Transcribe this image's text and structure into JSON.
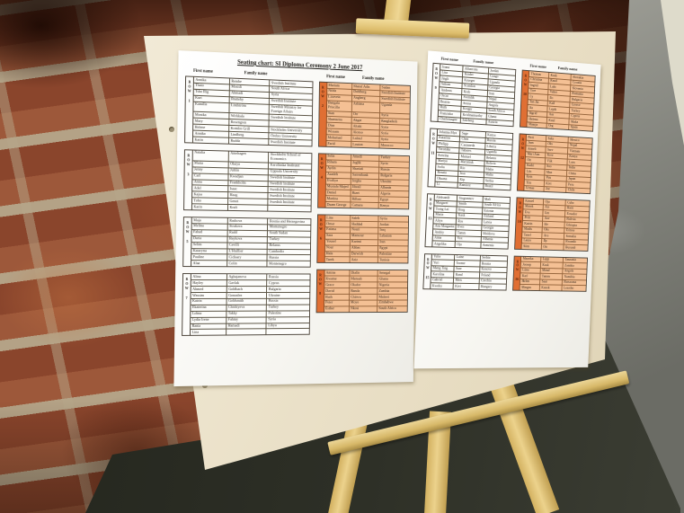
{
  "board": {
    "title": "Seating chart: SI Diploma Ceremony 2 June 2017",
    "column_headers": {
      "first": "First name",
      "family": "Family name"
    },
    "left_page": {
      "white_tables": [
        {
          "row": "1",
          "entries": [
            [
              "Annika",
              "Rembe",
              "Swedish Institute"
            ],
            [
              "Thato",
              "Mosidi",
              "South Africa"
            ],
            [
              "Tsho Rig",
              "Ahmadi",
              "Syria"
            ],
            [
              "Kurt",
              "Bratteby",
              "Swedish Institute"
            ],
            [
              "Kamilla",
              "Lindström",
              "Swedish Ministry for Foreign Affairs"
            ],
            [
              "Monika",
              "Wirkkala",
              "Swedish Institute"
            ],
            [
              "Mary",
              "Rosengren",
              ""
            ],
            [
              "Helene",
              "Komlos Grill",
              "Stockholm University"
            ],
            [
              "Annika",
              "Lindberg",
              "Örebro University"
            ],
            [
              "Karin",
              "Rudda",
              "Swedish Institute"
            ]
          ]
        },
        {
          "row": "3",
          "entries": [
            [
              "Natalia",
              "Amehagen",
              "Stockholm School of Economics"
            ],
            [
              "Maria",
              "Olaiya",
              "Karolinska Institutet"
            ],
            [
              "Jenny",
              "Juhlin",
              "Uppsala University"
            ],
            [
              "Carl",
              "Kwadjan",
              "Swedish Institute"
            ],
            [
              "Anna",
              "Frankholm",
              "Swedish Institute"
            ],
            [
              "Adel",
              "Isaac",
              "Swedish Institute"
            ],
            [
              "Kajsa",
              "Haag",
              "Swedish Institute"
            ],
            [
              "Tobo",
              "Genet",
              "Swedish Institute"
            ],
            [
              "Karin",
              "Kraft",
              ""
            ]
          ]
        },
        {
          "row": "5",
          "entries": [
            [
              "Maja",
              "Rashova",
              "Bosnia and Herzegovina"
            ],
            [
              "Melina",
              "Strakova",
              "Montenegro"
            ],
            [
              "Fahad",
              "Rudd",
              "South Sudan"
            ],
            [
              "Daria",
              "Baykova",
              "Turkey"
            ],
            [
              "Selim",
              "Cavilli",
              "Belarus"
            ],
            [
              "Kataryna",
              "L'Huillier",
              "Cambodia"
            ],
            [
              "Pauline",
              "Cidisary",
              "Russia"
            ],
            [
              "Alaa",
              "Colin",
              "Montenegro"
            ]
          ]
        },
        {
          "row": "7",
          "entries": [
            [
              "Alina",
              "Aghajanova",
              "Russia"
            ],
            [
              "Hayley",
              "Gavlak",
              "Cyprus"
            ],
            [
              "Ahmed",
              "Goldbach",
              "Bulgaria"
            ],
            [
              "Wassim",
              "Gonzalez",
              "Ukraine"
            ],
            [
              "Katrin",
              "Goldsmith",
              "Russia"
            ],
            [
              "Ekaterina",
              "Chishiyeva",
              "Turkey"
            ],
            [
              "Lobna",
              "Takky",
              "Palestine"
            ],
            [
              "Lydia Irene",
              "Fahmy",
              "Syria"
            ],
            [
              "Rania",
              "Hamadi",
              "Libya"
            ],
            [
              "Lina",
              "",
              ""
            ]
          ]
        }
      ],
      "orange_tables": [
        {
          "row": "2",
          "entries": [
            [
              "Mariam",
              "Sharaf Adis",
              "Sudan"
            ],
            [
              "Nilda",
              "Dahlberg",
              "Swedish Institute"
            ],
            [
              "Lizaveta",
              "Angberg",
              "Swedish Institute"
            ],
            [
              "Bangala Priscilla",
              "Ashima",
              "Uganda"
            ],
            [
              "Stan",
              "Orr",
              "Syria"
            ],
            [
              "Shamsena",
              "Akgar",
              "Bangladesh"
            ],
            [
              "Diaa",
              "Altaki",
              "Syria"
            ],
            [
              "Wissam",
              "Alonso",
              "Syria"
            ],
            [
              "Mohamad",
              "Lalouf",
              "Syria"
            ],
            [
              "Farid",
              "Louton",
              "Morocco"
            ]
          ]
        },
        {
          "row": "4",
          "entries": [
            [
              "Selin",
              "Amedi",
              "Turkey"
            ],
            [
              "Riham",
              "Joglik",
              "Syria"
            ],
            [
              "Aydin",
              "Shariati",
              "Russia"
            ],
            [
              "Azadeh",
              "Sarrenbank",
              "Bulgaria"
            ],
            [
              "Evaliya",
              "Jergha",
              "Ukraine"
            ],
            [
              "Mustafa Majed",
              "Jibrail",
              "Albania"
            ],
            [
              "Daniel",
              "Bizet",
              "Algeria"
            ],
            [
              "Martina",
              "Bilbao",
              "Egypt"
            ],
            [
              "Duam George",
              "Camara",
              "Kenya"
            ]
          ]
        },
        {
          "row": "6",
          "entries": [
            [
              "Lina",
              "Saleh",
              "Syria"
            ],
            [
              "Omar",
              "Haddad",
              "Jordan"
            ],
            [
              "Fatima",
              "Nouri",
              "Iraq"
            ],
            [
              "Sara",
              "Mansour",
              "Lebanon"
            ],
            [
              "Yousef",
              "Karimi",
              "Iran"
            ],
            [
              "Nour",
              "Abbas",
              "Egypt"
            ],
            [
              "Hala",
              "Darwish",
              "Palestine"
            ],
            [
              "Tarek",
              "Aziz",
              "Tunisia"
            ]
          ]
        },
        {
          "row": "8",
          "entries": [
            [
              "Amina",
              "Diallo",
              "Senegal"
            ],
            [
              "Kwame",
              "Mensah",
              "Ghana"
            ],
            [
              "Grace",
              "Okafor",
              "Nigeria"
            ],
            [
              "David",
              "Banda",
              "Zambia"
            ],
            [
              "Ruth",
              "Chirwa",
              "Malawi"
            ],
            [
              "Peter",
              "Moyo",
              "Zimbabwe"
            ],
            [
              "Esther",
              "Nkosi",
              "South Africa"
            ]
          ]
        }
      ]
    },
    "right_page": {
      "white_tables": [
        {
          "row": "9",
          "entries": [
            [
              "Joana",
              "Albarrons",
              "Jordan"
            ],
            [
              "Lisa",
              "Kinder",
              "Congo"
            ],
            [
              "Jingli",
              "Krueger",
              "Uganda"
            ],
            [
              "Sabran",
              "Scandon",
              "Georgia"
            ],
            [
              "Andreas",
              "Kreb",
              "Iran"
            ],
            [
              "Oscar",
              "Svemlik",
              "Nepal"
            ],
            [
              "Beatriz",
              "Sousa",
              "Angola"
            ],
            [
              "Ruth",
              "Kruger",
              "South Africa"
            ],
            [
              "Franziska",
              "Krishnamurthy",
              "Ghana"
            ],
            [
              "Charlemagne",
              "Salzberg",
              "Austria"
            ]
          ]
        },
        {
          "row": "11",
          "entries": [
            [
              "Johanna Mya",
              "Sage",
              "Kenya"
            ],
            [
              "Katarina",
              "Chen",
              "Russia"
            ],
            [
              "Philipp",
              "Castaneda",
              "Liberia"
            ],
            [
              "Veronika",
              "Tabares",
              "Uganda"
            ],
            [
              "Kristina",
              "Manuel",
              "Belarus"
            ],
            [
              "Mariya",
              "Maryniuk",
              "Bolivia"
            ],
            [
              "Sofia",
              "Rio",
              "Malta"
            ],
            [
              "Renata",
              "Issa",
              "Malta"
            ],
            [
              "Oksana",
              "Kip",
              "Serbia"
            ],
            [
              "Li",
              "Ramirez",
              "Brazil"
            ]
          ]
        },
        {
          "row": "13",
          "entries": [
            [
              "Aleksandr",
              "Stogiannov",
              "Mali"
            ],
            [
              "Margaret",
              "Smith",
              "South Africa"
            ],
            [
              "Tsang Lai",
              "Borg",
              "Estonia"
            ],
            [
              "Maria",
              "Kask",
              "Finland"
            ],
            [
              "Aliya",
              "Ros",
              "Latvia"
            ],
            [
              "Ana Margarita",
              "Ilves",
              "Georgia"
            ],
            [
              "Andriy",
              "Tamm",
              "Moldova"
            ],
            [
              "Anna",
              "Vox",
              "Albania"
            ],
            [
              "Angelika",
              "Oja",
              "Armenia"
            ]
          ]
        },
        {
          "row": "15",
          "entries": [
            [
              "Yulia",
              "Laine",
              "Serbia"
            ],
            [
              "Yuri",
              "Toome",
              "Bosnia"
            ],
            [
              "Meng Ting",
              "Saar",
              "Kosovo"
            ],
            [
              "Karolina",
              "Rand",
              "Poland"
            ],
            [
              "Gabriel",
              "Mets",
              "Czechia"
            ],
            [
              "Kweku",
              "Kivi",
              "Hungary"
            ]
          ]
        }
      ],
      "orange_tables": [
        {
          "row": "10",
          "entries": [
            [
              "Thomas",
              "Kask",
              "Slovakia"
            ],
            [
              "Christina",
              "Raud",
              "Croatia"
            ],
            [
              "Ingrid",
              "Laht",
              "Slovenia"
            ],
            [
              "Tore",
              "Vaher",
              "Romania"
            ],
            [
              "Ly",
              "Ilo",
              "Bulgaria"
            ],
            [
              "Tan Jin",
              "Kall",
              "Greece"
            ],
            [
              "Jia",
              "Lepik",
              "Turkey"
            ],
            [
              "Sigrid",
              "Aas",
              "Cyprus"
            ],
            [
              "Helena",
              "Kuul",
              "Malta"
            ],
            [
              "Maarja",
              "Org",
              "Spain"
            ]
          ]
        },
        {
          "row": "12",
          "entries": [
            [
              "Piret",
              "Saks",
              "Mexico"
            ],
            [
              "Jaan",
              "Oks",
              "Nepal"
            ],
            [
              "Anneli",
              "Sarv",
              "Vietnam"
            ],
            [
              "Mari Ann",
              "Kree",
              "Kenya"
            ],
            [
              "Ott",
              "Viik",
              "Laos"
            ],
            [
              "Kadri",
              "Soo",
              "India"
            ],
            [
              "Liis",
              "Maa",
              "China"
            ],
            [
              "Rein",
              "Puu",
              "Japan"
            ],
            [
              "Tiiu",
              "Kivi",
              "Peru"
            ],
            [
              "Urmas",
              "Joe",
              "Chile"
            ]
          ]
        },
        {
          "row": "14",
          "entries": [
            [
              "Kristel",
              "Oja",
              "Cuba"
            ],
            [
              "Marek",
              "Ats",
              "Haiti"
            ],
            [
              "Eva",
              "Unt",
              "Ecuador"
            ],
            [
              "Priit",
              "Aav",
              "Bolivia"
            ],
            [
              "Katrin",
              "Ide",
              "Ethiopia"
            ],
            [
              "Madis",
              "Oks",
              "Eritrea"
            ],
            [
              "Tanel",
              "Aru",
              "Somalia"
            ],
            [
              "Laura",
              "Ilp",
              "Rwanda"
            ],
            [
              "Siim",
              "Ott",
              "Burundi"
            ]
          ]
        },
        {
          "row": "16",
          "entries": [
            [
              "Maarika",
              "Lepp",
              "Tanzania"
            ],
            [
              "Joosep",
              "Kask",
              "Zambia"
            ],
            [
              "Liina",
              "Mänd",
              "Angola"
            ],
            [
              "Karl",
              "Tamm",
              "Namibia"
            ],
            [
              "Helen",
              "Saar",
              "Botswana"
            ],
            [
              "Margus",
              "Kuusk",
              "Lesotho"
            ]
          ]
        }
      ]
    }
  },
  "colors": {
    "board": "#ece3cc",
    "paper": "#fcfbf8",
    "orange_cell": "#f4c094",
    "orange_band": "#e06f33",
    "brick": "#8f4a31",
    "mortar": "#b5a68a",
    "easel_wood": "#e6c97e",
    "floor_light": "#a9a8a0",
    "floor_shadow": "#2a2c24"
  }
}
